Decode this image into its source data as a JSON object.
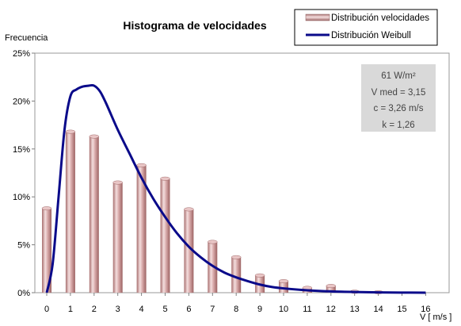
{
  "chart_data": {
    "type": "bar",
    "title": "Histograma de velocidades",
    "ylabel": "Frecuencia",
    "xlabel": "V [ m/s ]",
    "x": [
      0,
      1,
      2,
      3,
      4,
      5,
      6,
      7,
      8,
      9,
      10,
      11,
      12,
      13,
      14,
      15,
      16
    ],
    "ylim": [
      0,
      25
    ],
    "yticks": [
      "0%",
      "5%",
      "10%",
      "15%",
      "20%",
      "25%"
    ],
    "ytick_values": [
      0,
      5,
      10,
      15,
      20,
      25
    ],
    "grid": "none",
    "legend_position": "top-right",
    "series": [
      {
        "name": "Distribución velocidades",
        "kind": "bar",
        "color": "#c89a9a",
        "values": [
          8.8,
          16.8,
          16.3,
          11.5,
          13.3,
          11.9,
          8.7,
          5.3,
          3.7,
          1.8,
          1.2,
          0.5,
          0.7,
          0.1,
          0.05,
          0.0,
          0.0
        ]
      },
      {
        "name": "Distribución Weibull",
        "kind": "line",
        "color": "#0a0a8a",
        "x": [
          0,
          0.25,
          0.5,
          0.75,
          1,
          1.25,
          1.5,
          1.75,
          2,
          2.25,
          2.5,
          3,
          3.5,
          4,
          4.5,
          5,
          5.5,
          6,
          6.5,
          7,
          7.5,
          8,
          8.5,
          9,
          9.5,
          10,
          11,
          12,
          13,
          14,
          15,
          16
        ],
        "values": [
          0,
          3,
          10,
          17,
          20.5,
          21.2,
          21.5,
          21.6,
          21.6,
          21,
          19.8,
          17,
          14.5,
          12.0,
          9.8,
          7.9,
          6.2,
          4.8,
          3.7,
          2.8,
          2.1,
          1.6,
          1.2,
          0.85,
          0.6,
          0.45,
          0.25,
          0.13,
          0.07,
          0.03,
          0.01,
          0.0
        ]
      }
    ],
    "info_box": {
      "power": "61 W/m²",
      "vmed": "V med = 3,15",
      "c": "c = 3,26 m/s",
      "k": "k = 1,26"
    }
  }
}
